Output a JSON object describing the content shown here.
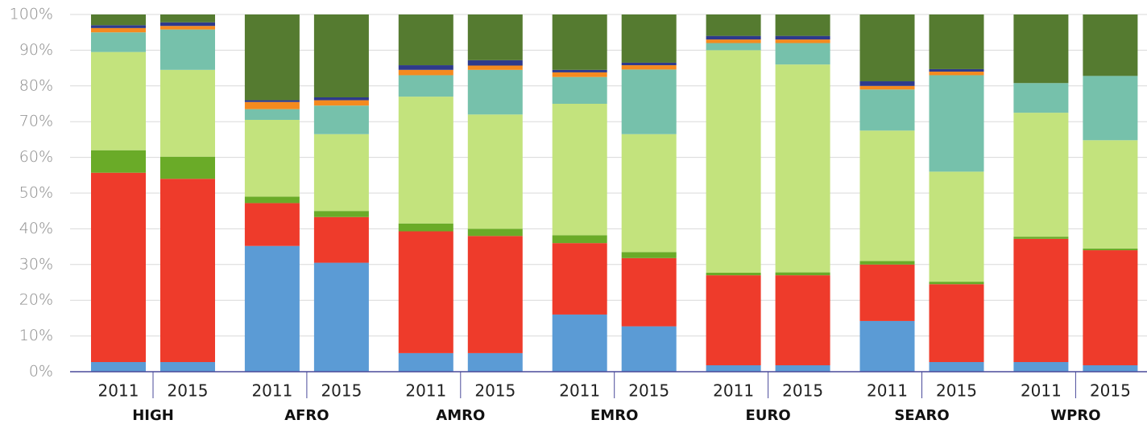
{
  "chart_data": {
    "type": "stacked_bar",
    "categories": [
      "2011",
      "2015",
      "2011",
      "2015",
      "2011",
      "2015",
      "2011",
      "2015",
      "2011",
      "2015",
      "2011",
      "2015",
      "2011",
      "2015"
    ],
    "groups": [
      "HIGH",
      "AFRO",
      "AMRO",
      "EMRO",
      "EURO",
      "SEARO",
      "WPRO"
    ],
    "series": [
      {
        "color": "#5b9bd5",
        "values": [
          2.7,
          2.7,
          35.2,
          30.5,
          5.2,
          5.2,
          16,
          12.7,
          1.8,
          1.8,
          14.2,
          2.7,
          2.7,
          1.8
        ]
      },
      {
        "color": "#ee3b2b",
        "values": [
          53,
          51.3,
          12,
          12.8,
          34.1,
          32.8,
          20,
          19.1,
          25.2,
          25.2,
          15.8,
          21.8,
          34.5,
          32.2
        ]
      },
      {
        "color": "#6aab28",
        "values": [
          6.3,
          6.2,
          1.8,
          1.7,
          2.2,
          2,
          2.2,
          1.7,
          0.7,
          0.8,
          1,
          0.7,
          0.6,
          0.5
        ]
      },
      {
        "color": "#c3e37d",
        "values": [
          27.5,
          24.3,
          21.5,
          21.5,
          35.5,
          32,
          36.8,
          33,
          62.3,
          58.2,
          36.5,
          30.8,
          34.7,
          30.3
        ]
      },
      {
        "color": "#76c1ab",
        "values": [
          5.5,
          11.3,
          3,
          8,
          6,
          12.5,
          7.5,
          18.1,
          2,
          6,
          11.5,
          27,
          8.3,
          18
        ]
      },
      {
        "color": "#f58a1f",
        "values": [
          1.2,
          1,
          2,
          1.5,
          1.5,
          1.2,
          1.3,
          1.2,
          1,
          1,
          1,
          1,
          0,
          0
        ]
      },
      {
        "color": "#2e3a8c",
        "values": [
          0.8,
          1,
          0.5,
          0.8,
          1.3,
          1.5,
          0.7,
          0.7,
          1,
          1,
          1.3,
          0.7,
          0,
          0
        ]
      },
      {
        "color": "#557b30",
        "values": [
          3,
          2.2,
          24,
          23.2,
          14.2,
          12.8,
          15.5,
          13.5,
          6,
          6,
          18.7,
          15.3,
          19.2,
          17.2
        ]
      }
    ],
    "ylim": [
      0,
      100
    ],
    "yticks": [
      {
        "value": 0,
        "label": "0%"
      },
      {
        "value": 10,
        "label": "10%"
      },
      {
        "value": 20,
        "label": "20%"
      },
      {
        "value": 30,
        "label": "30%"
      },
      {
        "value": 40,
        "label": "40%"
      },
      {
        "value": 50,
        "label": "50%"
      },
      {
        "value": 60,
        "label": "60%"
      },
      {
        "value": 70,
        "label": "70%"
      },
      {
        "value": 80,
        "label": "80%"
      },
      {
        "value": 90,
        "label": "90%"
      },
      {
        "value": 100,
        "label": "100%"
      }
    ],
    "grid": true
  }
}
